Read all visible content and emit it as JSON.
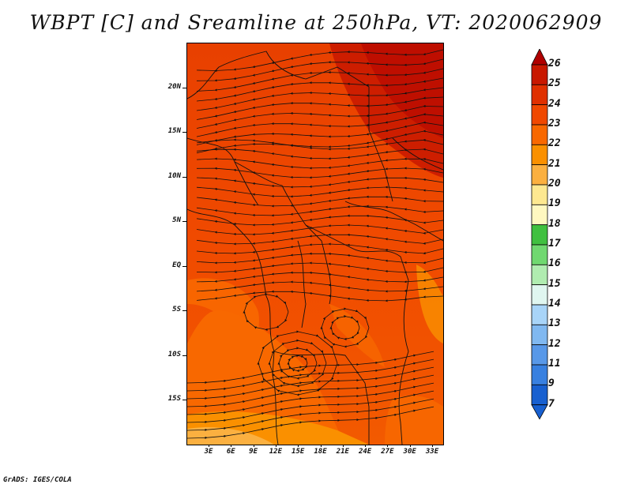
{
  "title": "WBPT [C] and Sreamline at 250hPa, VT: 2020062909",
  "credit": "GrADS: IGES/COLA",
  "map": {
    "lat_labels": [
      "20N",
      "15N",
      "10N",
      "5N",
      "EQ",
      "5S",
      "10S",
      "15S"
    ],
    "lon_labels": [
      "3E",
      "6E",
      "9E",
      "12E",
      "15E",
      "18E",
      "21E",
      "24E",
      "27E",
      "30E",
      "33E"
    ]
  },
  "colorbar": {
    "labels": [
      "26",
      "25",
      "24",
      "23",
      "22",
      "21",
      "20",
      "19",
      "18",
      "17",
      "16",
      "15",
      "14",
      "13",
      "12",
      "11",
      "9",
      "7"
    ],
    "colors": [
      "#b00000",
      "#c81800",
      "#e03000",
      "#f04800",
      "#f86800",
      "#fa9000",
      "#fbb040",
      "#fde890",
      "#fff8c0",
      "#40c040",
      "#70d870",
      "#b0ecb0",
      "#e0f6f0",
      "#a8d4f8",
      "#80b8f0",
      "#5898e8",
      "#3880e0",
      "#1860d0"
    ]
  }
}
